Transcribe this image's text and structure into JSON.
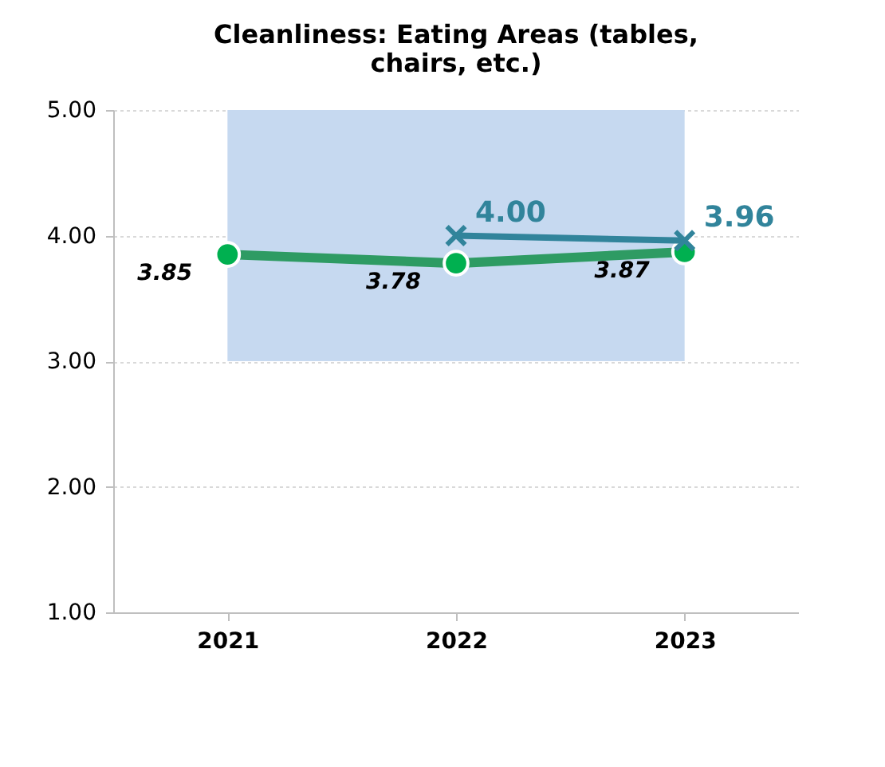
{
  "chart_data": {
    "type": "line",
    "title": "Cleanliness: Eating Areas (tables, chairs, etc.)",
    "categories": [
      "2021",
      "2022",
      "2023"
    ],
    "series": [
      {
        "color": "#2e9b63",
        "marker": "circle",
        "values": [
          3.85,
          3.78,
          3.87
        ],
        "value_labels": [
          "3.85",
          "3.78",
          "3.87"
        ]
      },
      {
        "color": "#31849b",
        "marker": "cross",
        "values": [
          null,
          4.0,
          3.96
        ],
        "value_labels": [
          null,
          "4.00",
          "3.96"
        ]
      }
    ],
    "ylim": [
      1,
      5
    ],
    "yticks": [
      {
        "value": 1,
        "label": "1.00"
      },
      {
        "value": 2,
        "label": "2.00"
      },
      {
        "value": 3,
        "label": "3.00"
      },
      {
        "value": 4,
        "label": "4.00"
      },
      {
        "value": 5,
        "label": "5.00"
      }
    ],
    "bands": [
      {
        "axis": "y",
        "from": 3,
        "to": 5,
        "color": "#c6d9f0"
      }
    ],
    "grid": "y"
  }
}
